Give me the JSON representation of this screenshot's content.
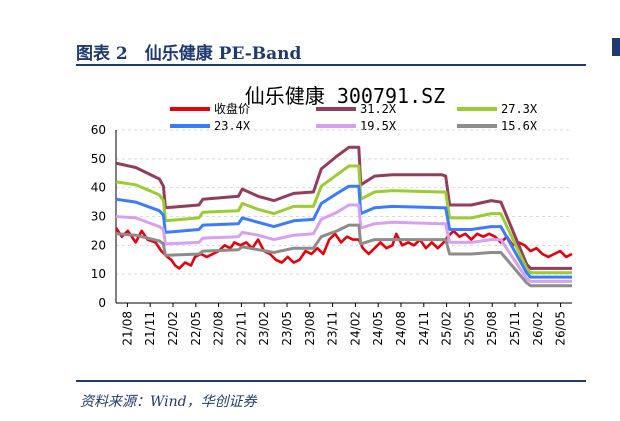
{
  "header": {
    "title": "图表 2　仙乐健康 PE-Band"
  },
  "footer": {
    "source": "资料来源：Wind，华创证券"
  },
  "chart_data": {
    "type": "line",
    "title": "仙乐健康 300791.SZ",
    "xlabel": "",
    "ylabel": "",
    "ylim": [
      0,
      60
    ],
    "yticks": [
      0,
      10,
      20,
      30,
      40,
      50,
      60
    ],
    "x_tick_labels": [
      "21/08",
      "21/11",
      "22/02",
      "22/05",
      "22/08",
      "22/11",
      "23/02",
      "23/05",
      "23/08",
      "23/11",
      "24/02",
      "24/05",
      "24/08",
      "24/11",
      "25/02",
      "25/05",
      "25/08",
      "25/11",
      "26/02",
      "26/05"
    ],
    "x_index_range": [
      0,
      20.2
    ],
    "grid": true,
    "legend_position": "top",
    "series": [
      {
        "name": "收盘价",
        "color": "#e8000b",
        "points": [
          [
            0,
            26
          ],
          [
            0.3,
            23
          ],
          [
            0.6,
            25
          ],
          [
            1.0,
            21
          ],
          [
            1.3,
            25
          ],
          [
            1.6,
            22
          ],
          [
            2.0,
            21
          ],
          [
            2.3,
            18
          ],
          [
            2.6,
            16
          ],
          [
            2.8,
            15
          ],
          [
            3.0,
            13
          ],
          [
            3.2,
            12
          ],
          [
            3.5,
            14
          ],
          [
            3.8,
            13
          ],
          [
            4.0,
            16
          ],
          [
            4.3,
            17
          ],
          [
            4.6,
            16
          ],
          [
            4.9,
            17
          ],
          [
            5.2,
            18
          ],
          [
            5.5,
            20
          ],
          [
            5.8,
            19
          ],
          [
            6.0,
            21
          ],
          [
            6.3,
            20
          ],
          [
            6.6,
            21
          ],
          [
            6.9,
            19
          ],
          [
            7.2,
            22
          ],
          [
            7.5,
            18
          ],
          [
            7.8,
            17
          ],
          [
            8.1,
            15
          ],
          [
            8.4,
            14
          ],
          [
            8.7,
            16
          ],
          [
            9.0,
            14
          ],
          [
            9.3,
            15
          ],
          [
            9.6,
            18
          ],
          [
            9.9,
            17
          ],
          [
            10.2,
            19
          ],
          [
            10.5,
            17
          ],
          [
            10.8,
            22
          ],
          [
            11.1,
            24
          ],
          [
            11.4,
            21
          ],
          [
            11.7,
            23
          ],
          [
            12.0,
            22
          ],
          [
            12.3,
            22
          ],
          [
            12.5,
            19
          ],
          [
            12.8,
            17
          ],
          [
            13.1,
            19
          ],
          [
            13.4,
            21
          ],
          [
            13.7,
            19
          ],
          [
            14.0,
            20
          ],
          [
            14.2,
            24
          ],
          [
            14.5,
            20
          ],
          [
            14.8,
            21
          ],
          [
            15.1,
            20
          ],
          [
            15.4,
            22
          ],
          [
            15.7,
            19
          ],
          [
            16.0,
            21
          ],
          [
            16.3,
            19
          ],
          [
            16.6,
            21
          ],
          [
            16.8,
            23
          ],
          [
            17.1,
            25
          ],
          [
            17.4,
            23
          ],
          [
            17.7,
            24
          ],
          [
            18.0,
            22
          ],
          [
            18.3,
            24
          ],
          [
            18.6,
            23
          ],
          [
            18.9,
            24
          ],
          [
            19.2,
            23
          ],
          [
            19.5,
            21
          ],
          [
            19.8,
            23
          ],
          [
            20.1,
            20
          ],
          [
            20.4,
            21
          ],
          [
            20.7,
            20
          ],
          [
            21.0,
            18
          ],
          [
            21.3,
            19
          ],
          [
            21.6,
            17
          ],
          [
            21.9,
            16
          ],
          [
            22.2,
            17
          ],
          [
            22.5,
            18
          ],
          [
            22.8,
            16
          ],
          [
            23.1,
            17
          ]
        ]
      },
      {
        "name": "31.2X",
        "color": "#943c5c",
        "points": [
          [
            0,
            48.5
          ],
          [
            1.0,
            47.0
          ],
          [
            2.2,
            43.0
          ],
          [
            2.4,
            40.5
          ],
          [
            2.5,
            33.0
          ],
          [
            4.2,
            34.0
          ],
          [
            4.4,
            36.0
          ],
          [
            6.2,
            37.0
          ],
          [
            6.4,
            39.5
          ],
          [
            7.2,
            37.0
          ],
          [
            8.0,
            35.5
          ],
          [
            9.0,
            38.0
          ],
          [
            10.0,
            38.5
          ],
          [
            10.4,
            46.5
          ],
          [
            11.2,
            51.0
          ],
          [
            11.8,
            54.0
          ],
          [
            12.3,
            54.0
          ],
          [
            12.4,
            41.0
          ],
          [
            13.1,
            44.0
          ],
          [
            14.0,
            44.5
          ],
          [
            16.5,
            44.5
          ],
          [
            16.7,
            44.0
          ],
          [
            16.9,
            34.0
          ],
          [
            18.0,
            34.0
          ],
          [
            19.0,
            35.5
          ],
          [
            19.5,
            35.0
          ],
          [
            20.8,
            13.5
          ],
          [
            21.0,
            12.0
          ],
          [
            23.1,
            12.0
          ]
        ]
      },
      {
        "name": "27.3X",
        "color": "#9acd32",
        "points": [
          [
            0,
            42.0
          ],
          [
            1.0,
            41.0
          ],
          [
            2.2,
            37.5
          ],
          [
            2.4,
            35.5
          ],
          [
            2.5,
            28.5
          ],
          [
            4.2,
            29.5
          ],
          [
            4.4,
            31.5
          ],
          [
            6.2,
            32.0
          ],
          [
            6.4,
            34.5
          ],
          [
            7.2,
            32.5
          ],
          [
            8.0,
            31.0
          ],
          [
            9.0,
            33.5
          ],
          [
            10.0,
            33.5
          ],
          [
            10.4,
            40.5
          ],
          [
            11.2,
            44.5
          ],
          [
            11.8,
            47.5
          ],
          [
            12.3,
            47.5
          ],
          [
            12.4,
            36.0
          ],
          [
            13.1,
            38.5
          ],
          [
            14.0,
            39.0
          ],
          [
            16.5,
            38.5
          ],
          [
            16.7,
            38.5
          ],
          [
            16.9,
            29.5
          ],
          [
            18.0,
            29.5
          ],
          [
            19.0,
            31.0
          ],
          [
            19.5,
            31.0
          ],
          [
            20.8,
            12.0
          ],
          [
            21.0,
            10.5
          ],
          [
            23.1,
            10.5
          ]
        ]
      },
      {
        "name": "23.4X",
        "color": "#3a7bff",
        "points": [
          [
            0,
            36.0
          ],
          [
            1.0,
            35.0
          ],
          [
            2.2,
            32.0
          ],
          [
            2.4,
            30.5
          ],
          [
            2.5,
            24.5
          ],
          [
            4.2,
            25.5
          ],
          [
            4.4,
            27.0
          ],
          [
            6.2,
            27.5
          ],
          [
            6.4,
            29.5
          ],
          [
            7.2,
            28.0
          ],
          [
            8.0,
            26.5
          ],
          [
            9.0,
            28.5
          ],
          [
            10.0,
            29.0
          ],
          [
            10.4,
            34.5
          ],
          [
            11.2,
            38.0
          ],
          [
            11.8,
            40.5
          ],
          [
            12.3,
            40.5
          ],
          [
            12.4,
            31.0
          ],
          [
            13.1,
            33.0
          ],
          [
            14.0,
            33.5
          ],
          [
            16.5,
            33.0
          ],
          [
            16.7,
            33.0
          ],
          [
            16.9,
            25.5
          ],
          [
            18.0,
            25.5
          ],
          [
            19.0,
            26.5
          ],
          [
            19.5,
            26.5
          ],
          [
            20.8,
            10.5
          ],
          [
            21.0,
            9.0
          ],
          [
            23.1,
            9.0
          ]
        ]
      },
      {
        "name": "19.5X",
        "color": "#d8a0f0",
        "points": [
          [
            0,
            30.0
          ],
          [
            1.0,
            29.5
          ],
          [
            2.2,
            26.5
          ],
          [
            2.4,
            25.5
          ],
          [
            2.5,
            20.5
          ],
          [
            4.2,
            21.0
          ],
          [
            4.4,
            22.5
          ],
          [
            6.2,
            23.0
          ],
          [
            6.4,
            24.5
          ],
          [
            7.2,
            23.5
          ],
          [
            8.0,
            22.0
          ],
          [
            9.0,
            23.5
          ],
          [
            10.0,
            24.0
          ],
          [
            10.4,
            29.0
          ],
          [
            11.2,
            31.5
          ],
          [
            11.8,
            34.0
          ],
          [
            12.3,
            34.0
          ],
          [
            12.4,
            26.0
          ],
          [
            13.1,
            27.5
          ],
          [
            14.0,
            28.0
          ],
          [
            16.5,
            27.5
          ],
          [
            16.7,
            27.5
          ],
          [
            16.9,
            21.0
          ],
          [
            18.0,
            21.0
          ],
          [
            19.0,
            22.0
          ],
          [
            19.5,
            22.0
          ],
          [
            20.8,
            8.5
          ],
          [
            21.0,
            7.5
          ],
          [
            23.1,
            7.5
          ]
        ]
      },
      {
        "name": "15.6X",
        "color": "#8c8c8c",
        "points": [
          [
            0,
            24.0
          ],
          [
            1.0,
            23.5
          ],
          [
            2.2,
            21.5
          ],
          [
            2.4,
            20.5
          ],
          [
            2.5,
            16.5
          ],
          [
            4.2,
            17.0
          ],
          [
            4.4,
            18.0
          ],
          [
            6.2,
            18.5
          ],
          [
            6.4,
            19.5
          ],
          [
            7.2,
            18.5
          ],
          [
            8.0,
            17.5
          ],
          [
            9.0,
            19.0
          ],
          [
            10.0,
            19.0
          ],
          [
            10.4,
            23.0
          ],
          [
            11.2,
            25.0
          ],
          [
            11.8,
            27.0
          ],
          [
            12.3,
            27.0
          ],
          [
            12.4,
            20.5
          ],
          [
            13.1,
            22.0
          ],
          [
            14.0,
            22.0
          ],
          [
            16.5,
            22.0
          ],
          [
            16.7,
            22.0
          ],
          [
            16.9,
            17.0
          ],
          [
            18.0,
            17.0
          ],
          [
            19.0,
            17.5
          ],
          [
            19.5,
            17.5
          ],
          [
            20.8,
            7.0
          ],
          [
            21.0,
            6.0
          ],
          [
            23.1,
            6.0
          ]
        ]
      }
    ]
  }
}
